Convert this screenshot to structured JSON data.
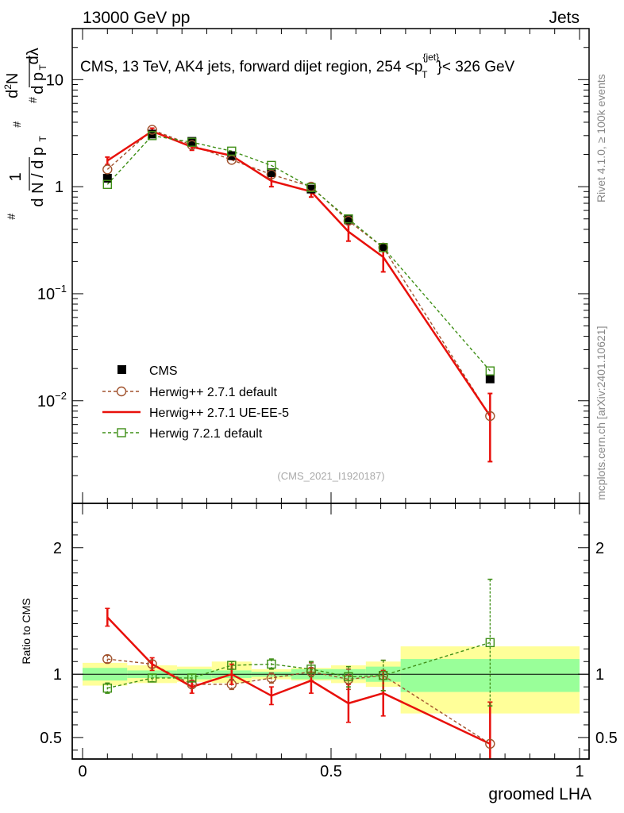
{
  "header": {
    "energy_label": "13000 GeV pp",
    "category_label": "Jets"
  },
  "side_text": {
    "rivet": "Rivet 4.1.0, ≥ 100k events",
    "source": "mcplots.cern.ch [arXiv:2401.10621]"
  },
  "chart_data": {
    "type": "line",
    "title_main": "CMS, 13 TeV, AK4 jets, forward dijet region, 254 <p",
    "title_sup": "{jet}",
    "title_sub": "T",
    "title_end": "}< 326 GeV",
    "analysis_id": "(CMS_2021_I1920187)",
    "xlabel": "groomed LHA",
    "ylabel_ratio": "Ratio to CMS",
    "xlim": [
      0,
      1
    ],
    "main_ylim_log": [
      0.0011,
      30
    ],
    "ratio_ylim": [
      0.33,
      2.35
    ],
    "x_ticks": [
      "0",
      "0.5",
      "1"
    ],
    "main_y_ticks": [
      {
        "value": 10,
        "label": "10"
      },
      {
        "value": 1,
        "label": "1"
      },
      {
        "value": 0.1,
        "label": "10",
        "exp": "−1"
      },
      {
        "value": 0.01,
        "label": "10",
        "exp": "−2"
      }
    ],
    "ratio_y_ticks": [
      "0.5",
      "1",
      "2"
    ],
    "bin_edges": [
      0,
      0.09,
      0.19,
      0.26,
      0.34,
      0.42,
      0.5,
      0.57,
      0.64,
      1.0
    ],
    "x": [
      0.05,
      0.14,
      0.22,
      0.3,
      0.38,
      0.46,
      0.535,
      0.605,
      0.82
    ],
    "cms": {
      "name": "CMS",
      "values": [
        1.2,
        3.1,
        2.65,
        1.95,
        1.35,
        0.95,
        0.49,
        0.27,
        0.016
      ],
      "band_inner": [
        [
          0.95,
          1.05
        ],
        [
          0.97,
          1.03
        ],
        [
          0.96,
          1.04
        ],
        [
          0.97,
          1.03
        ],
        [
          0.98,
          1.02
        ],
        [
          0.96,
          1.04
        ],
        [
          0.96,
          1.04
        ],
        [
          0.94,
          1.06
        ],
        [
          0.86,
          1.12
        ]
      ],
      "band_outer": [
        [
          0.91,
          1.09
        ],
        [
          0.93,
          1.07
        ],
        [
          0.94,
          1.06
        ],
        [
          0.93,
          1.1
        ],
        [
          0.96,
          1.04
        ],
        [
          0.95,
          1.05
        ],
        [
          0.93,
          1.07
        ],
        [
          0.9,
          1.1
        ],
        [
          0.69,
          1.22
        ]
      ]
    },
    "series": [
      {
        "name": "Herwig++ 2.7.1 default",
        "color": "#a0522d",
        "marker": "circle",
        "dashed": true,
        "values": [
          1.45,
          3.4,
          2.45,
          1.78,
          1.3,
          1.0,
          0.48,
          0.27,
          0.0072
        ],
        "ratio": [
          1.12,
          1.08,
          0.92,
          0.92,
          0.97,
          1.02,
          0.96,
          0.99,
          0.45
        ],
        "ratio_err": [
          0.03,
          0.03,
          0.03,
          0.04,
          0.04,
          0.07,
          0.08,
          0.12,
          0.33
        ]
      },
      {
        "name": "Herwig++ 2.7.1 UE-EE-5",
        "color": "#e8100b",
        "marker": "none",
        "dashed": false,
        "values": [
          1.75,
          3.3,
          2.35,
          1.95,
          1.13,
          0.9,
          0.38,
          0.22,
          0.0072
        ],
        "errors": [
          0.14,
          0.22,
          0.16,
          0.15,
          0.13,
          0.1,
          0.07,
          0.06,
          0.0045
        ],
        "ratio": [
          1.45,
          1.08,
          0.9,
          1.0,
          0.83,
          0.95,
          0.77,
          0.85,
          0.45
        ],
        "ratio_err": [
          0.07,
          0.05,
          0.05,
          0.08,
          0.07,
          0.1,
          0.15,
          0.18,
          0.33
        ]
      },
      {
        "name": "Herwig 7.2.1 default",
        "color": "#3f8f17",
        "marker": "square",
        "dashed": true,
        "values": [
          1.05,
          3.0,
          2.6,
          2.15,
          1.58,
          0.98,
          0.5,
          0.27,
          0.019
        ],
        "ratio": [
          0.89,
          0.97,
          0.97,
          1.07,
          1.08,
          1.04,
          0.98,
          0.99,
          1.25
        ],
        "ratio_err": [
          0.04,
          0.03,
          0.03,
          0.03,
          0.04,
          0.06,
          0.08,
          0.12,
          0.5
        ]
      }
    ]
  }
}
